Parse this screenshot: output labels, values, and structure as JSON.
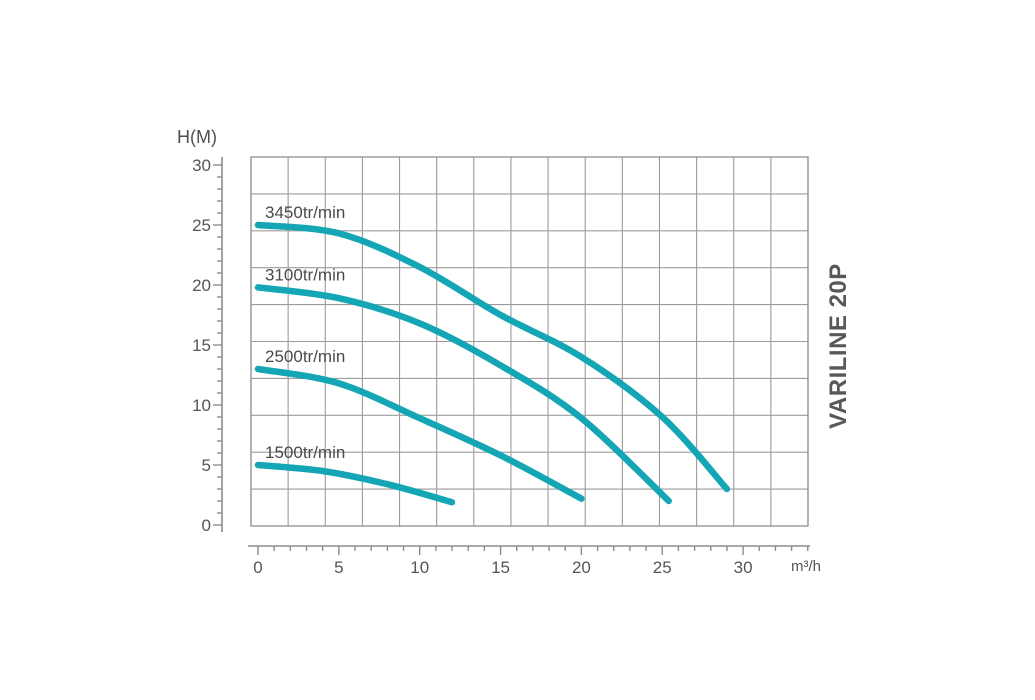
{
  "product": {
    "label": "VARILINE 20P"
  },
  "chart_data": {
    "type": "line",
    "title": "",
    "xlabel": "m³/h",
    "ylabel": "H(M)",
    "xlim": [
      0,
      34
    ],
    "ylim": [
      0,
      30
    ],
    "x_ticks": [
      0,
      5,
      10,
      15,
      20,
      25,
      30
    ],
    "y_ticks": [
      0,
      5,
      10,
      15,
      20,
      25,
      30
    ],
    "minor_tick_step": 1,
    "grid": {
      "on": true,
      "columns": 15,
      "rows": 10
    },
    "legend_position": "inline-labels-at-curve-start",
    "curve_color": "#14a6b5",
    "grid_color": "#9b9b9b",
    "axis_color": "#8c8c8c",
    "series": [
      {
        "name": "3450tr/min",
        "points": [
          [
            0,
            25
          ],
          [
            5,
            24.3
          ],
          [
            10,
            21.5
          ],
          [
            15,
            17.5
          ],
          [
            20,
            14
          ],
          [
            25,
            9
          ],
          [
            29,
            3
          ]
        ]
      },
      {
        "name": "3100tr/min",
        "points": [
          [
            0,
            19.8
          ],
          [
            5,
            18.9
          ],
          [
            10,
            16.8
          ],
          [
            15,
            13.3
          ],
          [
            20,
            8.9
          ],
          [
            25.4,
            2
          ]
        ]
      },
      {
        "name": "2500tr/min",
        "points": [
          [
            0,
            13
          ],
          [
            5,
            11.8
          ],
          [
            10,
            8.9
          ],
          [
            15,
            5.8
          ],
          [
            20,
            2.2
          ]
        ]
      },
      {
        "name": "1500tr/min",
        "points": [
          [
            0,
            5
          ],
          [
            4,
            4.5
          ],
          [
            8,
            3.4
          ],
          [
            12,
            1.9
          ]
        ]
      }
    ]
  }
}
